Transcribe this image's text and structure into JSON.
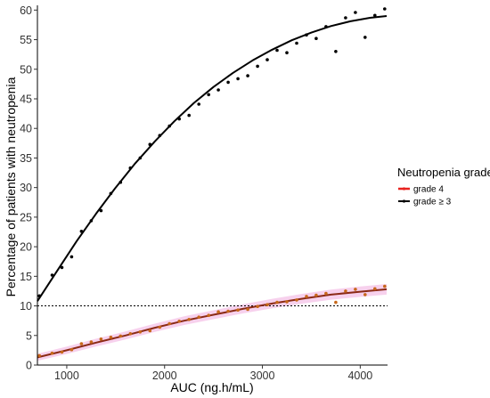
{
  "chart_data": {
    "type": "scatter",
    "xlabel": "AUC (ng.h/mL)",
    "ylabel": "Percentage of patients with neutropenia",
    "xlim": [
      700,
      4270
    ],
    "ylim": [
      0,
      60.5
    ],
    "x_ticks": [
      1000,
      2000,
      3000,
      4000
    ],
    "y_ticks": [
      0,
      5,
      10,
      15,
      20,
      25,
      30,
      35,
      40,
      45,
      50,
      55,
      60
    ],
    "reference_line": {
      "y": 10,
      "style": "dotted"
    },
    "grid": false,
    "legend": {
      "title": "Neutropenia grade",
      "position": "right",
      "items": [
        {
          "label": "grade 4",
          "color": "#e8221f"
        },
        {
          "label": "grade  ≥ 3",
          "color": "#000000"
        }
      ]
    },
    "series": [
      {
        "name": "grade  ≥ 3",
        "color": "#000000",
        "point_color": "#000000",
        "points": [
          [
            720,
            11.7
          ],
          [
            850,
            15.2
          ],
          [
            950,
            16.5
          ],
          [
            1050,
            18.3
          ],
          [
            1150,
            22.6
          ],
          [
            1250,
            24.4
          ],
          [
            1350,
            26.1
          ],
          [
            1450,
            29.0
          ],
          [
            1550,
            30.9
          ],
          [
            1650,
            33.3
          ],
          [
            1750,
            35.0
          ],
          [
            1850,
            37.3
          ],
          [
            1950,
            38.8
          ],
          [
            2050,
            40.4
          ],
          [
            2150,
            41.6
          ],
          [
            2250,
            42.2
          ],
          [
            2350,
            44.1
          ],
          [
            2450,
            45.7
          ],
          [
            2550,
            46.5
          ],
          [
            2650,
            47.8
          ],
          [
            2750,
            48.4
          ],
          [
            2850,
            48.9
          ],
          [
            2950,
            50.5
          ],
          [
            3050,
            51.6
          ],
          [
            3150,
            53.2
          ],
          [
            3250,
            52.8
          ],
          [
            3350,
            54.4
          ],
          [
            3450,
            55.8
          ],
          [
            3550,
            55.2
          ],
          [
            3650,
            57.2
          ],
          [
            3750,
            53.0
          ],
          [
            3850,
            58.7
          ],
          [
            3950,
            59.6
          ],
          [
            4050,
            55.4
          ],
          [
            4150,
            59.1
          ],
          [
            4250,
            60.2
          ]
        ],
        "fit": [
          [
            700,
            10.8
          ],
          [
            900,
            15.9
          ],
          [
            1100,
            20.9
          ],
          [
            1300,
            25.6
          ],
          [
            1500,
            30.0
          ],
          [
            1700,
            34.1
          ],
          [
            1900,
            37.8
          ],
          [
            2100,
            41.2
          ],
          [
            2300,
            44.3
          ],
          [
            2500,
            47.0
          ],
          [
            2700,
            49.4
          ],
          [
            2900,
            51.5
          ],
          [
            3100,
            53.3
          ],
          [
            3300,
            54.9
          ],
          [
            3500,
            56.2
          ],
          [
            3700,
            57.3
          ],
          [
            3900,
            58.1
          ],
          [
            4100,
            58.7
          ],
          [
            4270,
            59.0
          ]
        ]
      },
      {
        "name": "grade 4",
        "color": "#8b2a16",
        "point_color": "#c7681a",
        "band_color": "#ee9ad8",
        "points": [
          [
            720,
            1.6
          ],
          [
            850,
            2.0
          ],
          [
            950,
            2.2
          ],
          [
            1050,
            2.6
          ],
          [
            1150,
            3.6
          ],
          [
            1250,
            3.9
          ],
          [
            1350,
            4.4
          ],
          [
            1450,
            4.7
          ],
          [
            1550,
            4.9
          ],
          [
            1650,
            5.3
          ],
          [
            1750,
            5.6
          ],
          [
            1850,
            5.8
          ],
          [
            1950,
            6.4
          ],
          [
            2050,
            7.0
          ],
          [
            2150,
            7.4
          ],
          [
            2250,
            7.7
          ],
          [
            2350,
            8.1
          ],
          [
            2450,
            8.4
          ],
          [
            2550,
            9.0
          ],
          [
            2650,
            9.1
          ],
          [
            2750,
            9.3
          ],
          [
            2850,
            9.4
          ],
          [
            2950,
            9.9
          ],
          [
            3050,
            10.2
          ],
          [
            3150,
            10.6
          ],
          [
            3250,
            10.7
          ],
          [
            3350,
            11.0
          ],
          [
            3450,
            11.6
          ],
          [
            3550,
            11.8
          ],
          [
            3650,
            12.1
          ],
          [
            3750,
            10.6
          ],
          [
            3850,
            12.5
          ],
          [
            3950,
            12.8
          ],
          [
            4050,
            11.9
          ],
          [
            4150,
            12.9
          ],
          [
            4250,
            13.3
          ]
        ],
        "fit": [
          [
            700,
            1.3
          ],
          [
            1000,
            2.5
          ],
          [
            1300,
            3.8
          ],
          [
            1600,
            5.0
          ],
          [
            1900,
            6.3
          ],
          [
            2200,
            7.5
          ],
          [
            2500,
            8.5
          ],
          [
            2800,
            9.5
          ],
          [
            3100,
            10.4
          ],
          [
            3400,
            11.2
          ],
          [
            3700,
            11.9
          ],
          [
            4000,
            12.4
          ],
          [
            4270,
            12.8
          ]
        ]
      }
    ]
  }
}
